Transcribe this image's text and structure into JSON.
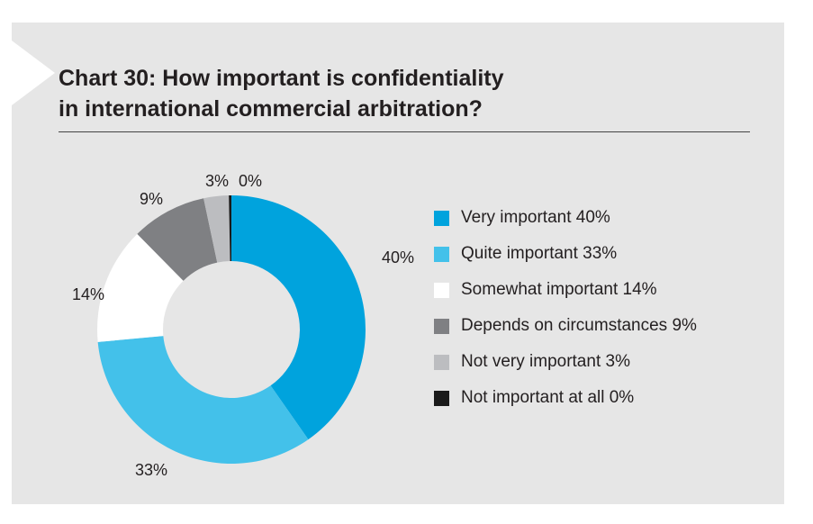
{
  "title_line1": "Chart 30: How important is confidentiality",
  "title_line2": "in international commercial arbitration?",
  "chart_data": {
    "type": "pie",
    "donut": true,
    "title": "Chart 30: How important is confidentiality in international commercial arbitration?",
    "legend_position": "right",
    "slices": [
      {
        "name": "Very important",
        "value": 40,
        "label": "40%",
        "legend": "Very important 40%",
        "color": "#00a3dd"
      },
      {
        "name": "Quite important",
        "value": 33,
        "label": "33%",
        "legend": "Quite important 33%",
        "color": "#43c1ea"
      },
      {
        "name": "Somewhat important",
        "value": 14,
        "label": "14%",
        "legend": "Somewhat important 14%",
        "color": "#ffffff"
      },
      {
        "name": "Depends on circumstances",
        "value": 9,
        "label": "9%",
        "legend": "Depends on circumstances 9%",
        "color": "#7f8083"
      },
      {
        "name": "Not very important",
        "value": 3,
        "label": "3%",
        "legend": "Not very important 3%",
        "color": "#bcbdc0"
      },
      {
        "name": "Not important at all",
        "value": 0,
        "label": "0%",
        "legend": "Not important at all 0%",
        "color": "#1a1a1a"
      }
    ]
  }
}
